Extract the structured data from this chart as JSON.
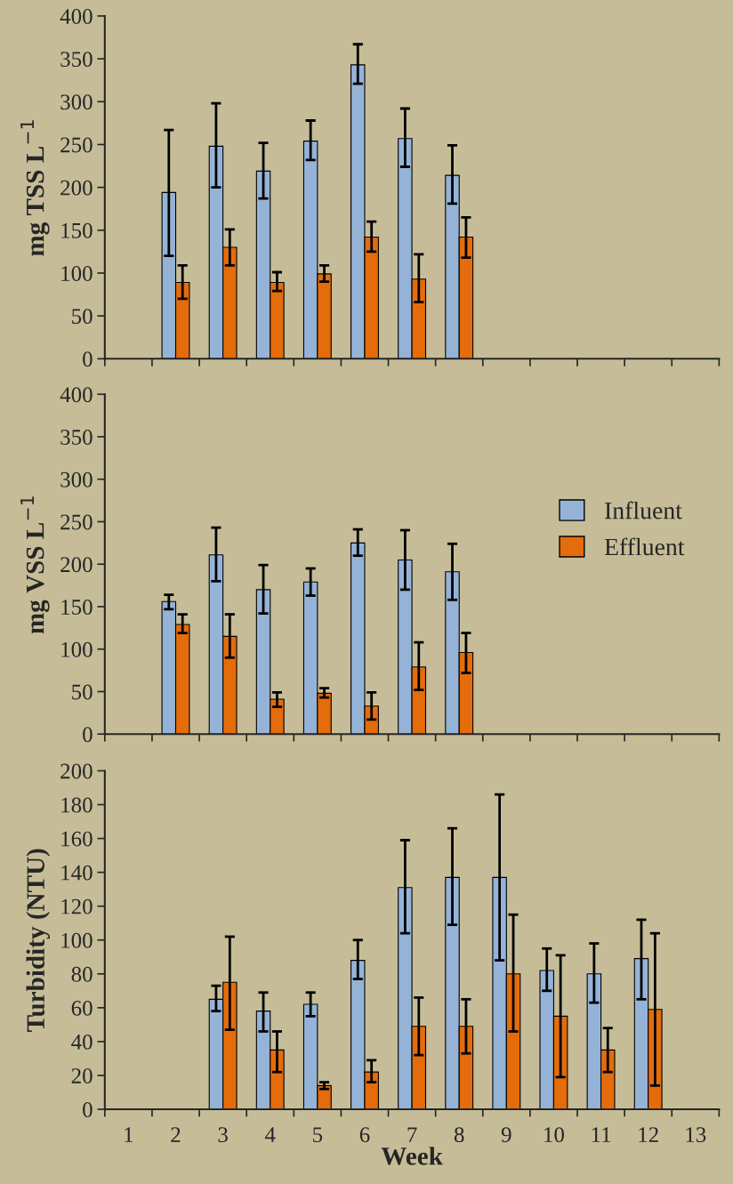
{
  "chart_data": [
    {
      "type": "bar",
      "ylabel": "mg TSS L$^{−1}$",
      "categories": [
        "1",
        "2",
        "3",
        "4",
        "5",
        "6",
        "7",
        "8",
        "9",
        "10",
        "11",
        "12",
        "13"
      ],
      "ylim": [
        0,
        400
      ],
      "yticks": [
        0,
        50,
        100,
        150,
        200,
        250,
        300,
        350,
        400
      ],
      "tick_labels": "y",
      "legend": false,
      "series": [
        {
          "color": "#95b3d7",
          "values": [
            null,
            194,
            248,
            219,
            254,
            343,
            257,
            214,
            null,
            null,
            null,
            null,
            null
          ],
          "errors": [
            null,
            [
              120,
              267
            ],
            [
              200,
              298
            ],
            [
              187,
              252
            ],
            [
              232,
              278
            ],
            [
              321,
              367
            ],
            [
              224,
              292
            ],
            [
              181,
              249
            ],
            null,
            null,
            null,
            null,
            null
          ]
        },
        {
          "color": "#e46c0a",
          "values": [
            null,
            89,
            130,
            89,
            99,
            142,
            93,
            142,
            null,
            null,
            null,
            null,
            null
          ],
          "errors": [
            null,
            [
              70,
              109
            ],
            [
              109,
              151
            ],
            [
              79,
              101
            ],
            [
              90,
              109
            ],
            [
              125,
              160
            ],
            [
              66,
              122
            ],
            [
              118,
              165
            ],
            null,
            null,
            null,
            null,
            null
          ]
        }
      ]
    },
    {
      "type": "bar",
      "ylabel": "mg VSS L$^{−1}$",
      "categories": [
        "1",
        "2",
        "3",
        "4",
        "5",
        "6",
        "7",
        "8",
        "9",
        "10",
        "11",
        "12",
        "13"
      ],
      "ylim": [
        0,
        400
      ],
      "yticks": [
        0,
        50,
        100,
        150,
        200,
        250,
        300,
        350,
        400
      ],
      "tick_labels": "y",
      "legend": "center right",
      "series": [
        {
          "name": "Influent",
          "color": "#95b3d7",
          "values": [
            null,
            156,
            211,
            170,
            179,
            225,
            205,
            191,
            null,
            null,
            null,
            null,
            null
          ],
          "errors": [
            null,
            [
              147,
              164
            ],
            [
              180,
              243
            ],
            [
              142,
              199
            ],
            [
              163,
              195
            ],
            [
              210,
              241
            ],
            [
              170,
              240
            ],
            [
              158,
              224
            ],
            null,
            null,
            null,
            null,
            null
          ]
        },
        {
          "name": "Effluent",
          "color": "#e46c0a",
          "values": [
            null,
            129,
            115,
            41,
            48,
            33,
            79,
            96,
            null,
            null,
            null,
            null,
            null
          ],
          "errors": [
            null,
            [
              119,
              141
            ],
            [
              90,
              141
            ],
            [
              32,
              49
            ],
            [
              43,
              54
            ],
            [
              17,
              49
            ],
            [
              52,
              108
            ],
            [
              72,
              119
            ],
            null,
            null,
            null,
            null,
            null
          ]
        }
      ]
    },
    {
      "type": "bar",
      "ylabel": "Turbidity (NTU)",
      "xlabel": "Week",
      "categories": [
        "1",
        "2",
        "3",
        "4",
        "5",
        "6",
        "7",
        "8",
        "9",
        "10",
        "11",
        "12",
        "13"
      ],
      "ylim": [
        0,
        200
      ],
      "yticks": [
        0,
        20,
        40,
        60,
        80,
        100,
        120,
        140,
        160,
        180,
        200
      ],
      "legend": false,
      "series": [
        {
          "color": "#95b3d7",
          "values": [
            null,
            null,
            65,
            58,
            62,
            88,
            131,
            137,
            137,
            82,
            80,
            89,
            null
          ],
          "errors": [
            null,
            null,
            [
              58,
              73
            ],
            [
              46,
              69
            ],
            [
              55,
              69
            ],
            [
              77,
              100
            ],
            [
              104,
              159
            ],
            [
              109,
              166
            ],
            [
              88,
              186
            ],
            [
              70,
              95
            ],
            [
              63,
              98
            ],
            [
              65,
              112
            ],
            null
          ]
        },
        {
          "color": "#e46c0a",
          "values": [
            null,
            null,
            75,
            35,
            14,
            22,
            49,
            49,
            80,
            55,
            35,
            59,
            null
          ],
          "errors": [
            null,
            null,
            [
              47,
              102
            ],
            [
              22,
              46
            ],
            [
              12,
              16
            ],
            [
              16,
              29
            ],
            [
              32,
              66
            ],
            [
              33,
              65
            ],
            [
              46,
              115
            ],
            [
              19,
              91
            ],
            [
              22,
              48
            ],
            [
              14,
              104
            ],
            null
          ]
        }
      ]
    }
  ]
}
